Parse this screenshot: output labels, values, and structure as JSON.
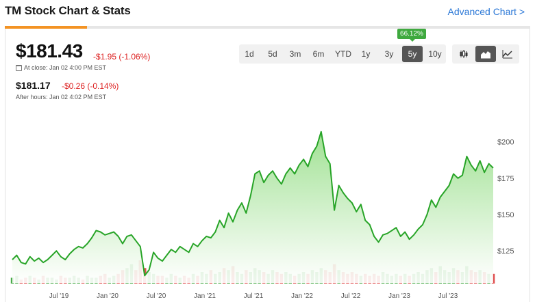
{
  "header": {
    "title": "TM Stock Chart & Stats",
    "advanced_link": "Advanced Chart >"
  },
  "quote": {
    "price": "$181.43",
    "change": "-$1.95 (-1.06%)",
    "close_time": "At close: Jan 02 4:00 PM EST",
    "after_hours_price": "$181.17",
    "after_hours_change": "-$0.26 (-0.14%)",
    "after_hours_time": "After hours: Jan 02 4:02 PM EST"
  },
  "ranges": [
    "1d",
    "5d",
    "3m",
    "6m",
    "YTD",
    "1y",
    "3y",
    "5y",
    "10y"
  ],
  "active_range": "5y",
  "range_tooltip": "66.12%",
  "chart_types": [
    {
      "name": "candlestick-icon",
      "active": false
    },
    {
      "name": "area-chart-icon",
      "active": true
    },
    {
      "name": "line-chart-icon",
      "active": false
    }
  ],
  "colors": {
    "line": "#27a427",
    "area_top": "#9adf8c",
    "area_bottom": "#ffffff",
    "down": "#d22222",
    "volume_up": "#2a9d2a",
    "volume_down": "#d93030",
    "accent": "#f39324",
    "link": "#2a77d6"
  },
  "chart_data": {
    "type": "area",
    "y_ticks": [
      125,
      150,
      175,
      200
    ],
    "y_tick_labels": [
      "$125",
      "$150",
      "$175",
      "$200"
    ],
    "ylim": [
      103,
      213
    ],
    "x_tick_labels": [
      "Jul '19",
      "Jan '20",
      "Jul '20",
      "Jan '21",
      "Jul '21",
      "Jan '22",
      "Jul '22",
      "Jan '23",
      "Jul '23"
    ],
    "grid": false,
    "series": [
      {
        "values": [
          119,
          122,
          117,
          116,
          121,
          118,
          120,
          117,
          119,
          122,
          125,
          121,
          119,
          123,
          126,
          128,
          127,
          130,
          134,
          139,
          138,
          136,
          137,
          138,
          135,
          130,
          135,
          136,
          132,
          128,
          108,
          112,
          124,
          120,
          118,
          122,
          126,
          124,
          128,
          126,
          124,
          130,
          128,
          132,
          135,
          134,
          138,
          146,
          141,
          151,
          145,
          153,
          158,
          151,
          163,
          178,
          180,
          172,
          177,
          180,
          175,
          171,
          178,
          182,
          178,
          184,
          188,
          183,
          192,
          197,
          207,
          190,
          185,
          153,
          170,
          165,
          161,
          158,
          152,
          157,
          146,
          143,
          135,
          131,
          136,
          137,
          139,
          141,
          135,
          138,
          133,
          136,
          140,
          143,
          150,
          160,
          155,
          162,
          166,
          170,
          178,
          175,
          177,
          190,
          184,
          180,
          187,
          179,
          185,
          182
        ],
        "volume": [
          3,
          4,
          2,
          3,
          4,
          3,
          2,
          4,
          3,
          3,
          2,
          4,
          3,
          3,
          4,
          3,
          2,
          4,
          3,
          3,
          4,
          5,
          3,
          4,
          5,
          7,
          8,
          10,
          7,
          12,
          8,
          6,
          5,
          4,
          4,
          3,
          5,
          4,
          3,
          4,
          3,
          5,
          4,
          6,
          5,
          7,
          5,
          6,
          8,
          7,
          9,
          6,
          5,
          7,
          6,
          8,
          7,
          6,
          5,
          7,
          6,
          5,
          6,
          5,
          4,
          5,
          6,
          5,
          7,
          6,
          8,
          7,
          6,
          10,
          7,
          6,
          5,
          6,
          5,
          4,
          5,
          4,
          5,
          4,
          6,
          5,
          4,
          5,
          4,
          5,
          4,
          5,
          6,
          5,
          7,
          8,
          6,
          9,
          7,
          6,
          8,
          7,
          6,
          9,
          7,
          6,
          7,
          6,
          5,
          5
        ]
      }
    ]
  }
}
